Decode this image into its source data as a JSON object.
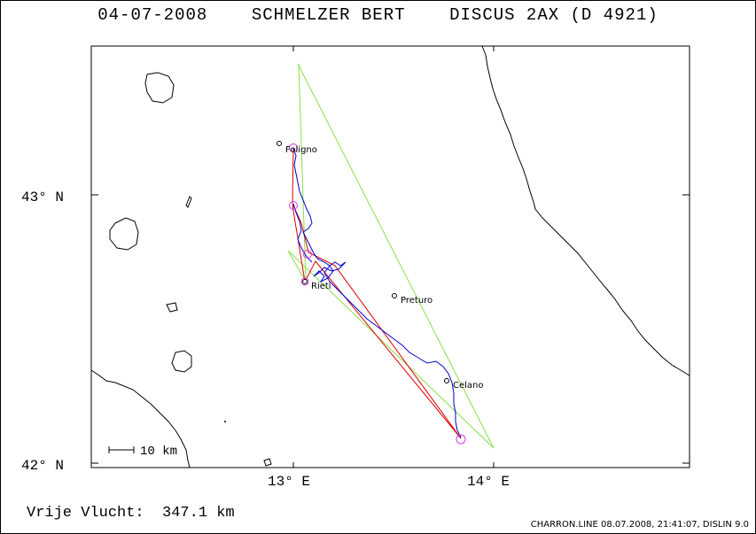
{
  "title": "04-07-2008    SCHMELZER BERT    DISCUS 2AX (D 4921)",
  "footer": {
    "distance_label": "Vrije Vlucht:  347.1 km",
    "credit": "CHARRON.LINE 08.07.2008, 21:41:07, DISLIN 9.0"
  },
  "axes": {
    "lat_labels": [
      "43° N",
      "42° N"
    ],
    "lon_labels": [
      "13° E",
      "14° E"
    ]
  },
  "scale_bar": {
    "label": "10 km"
  },
  "places": [
    {
      "name": "Foligno"
    },
    {
      "name": "Rieti"
    },
    {
      "name": "Preturo"
    },
    {
      "name": "Celano"
    }
  ],
  "colors": {
    "task_line": "#88e04a",
    "flight_track": "#0000cc",
    "optimized_route": "#e00000",
    "turnpoint_marker": "#d63adf",
    "coastline": "#000000"
  }
}
